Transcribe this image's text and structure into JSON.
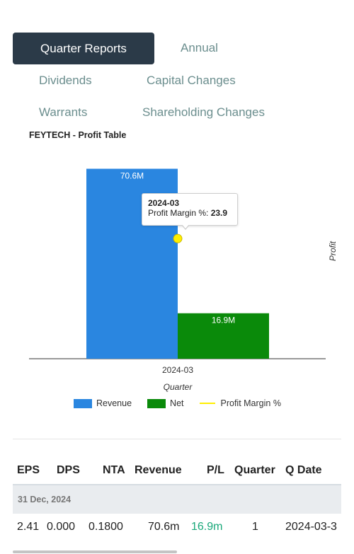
{
  "tabs": {
    "quarter_reports": "Quarter Reports",
    "annual": "Annual",
    "dividends": "Dividends",
    "capital_changes": "Capital Changes",
    "warrants": "Warrants",
    "shareholding_changes": "Shareholding Changes"
  },
  "chart_data": {
    "type": "bar",
    "title": "FEYTECH - Profit Table",
    "categories": [
      "2024-03"
    ],
    "series": [
      {
        "name": "Revenue",
        "values": [
          70.6
        ],
        "color": "#2a86e0",
        "label": "70.6M"
      },
      {
        "name": "Net",
        "values": [
          16.9
        ],
        "color": "#0a8a0a",
        "label": "16.9M"
      },
      {
        "name": "Profit Margin %",
        "values": [
          23.9
        ],
        "color": "#ffee00",
        "type": "line"
      }
    ],
    "xlabel": "Quarter",
    "y2label": "Profit",
    "legend_position": "bottom",
    "tooltip": {
      "title": "2024-03",
      "label": "Profit Margin %:",
      "value": "23.9"
    }
  },
  "table": {
    "headers": [
      "EPS",
      "DPS",
      "NTA",
      "Revenue",
      "P/L",
      "Quarter",
      "Q Date"
    ],
    "group_label": "31 Dec, 2024",
    "row": [
      "2.41",
      "0.000",
      "0.1800",
      "70.6m",
      "16.9m",
      "1",
      "2024-03-3"
    ]
  },
  "colors": {
    "active_tab": "#2b3a48",
    "tab_text": "#6b8e8e",
    "positive": "#1aa87a"
  }
}
